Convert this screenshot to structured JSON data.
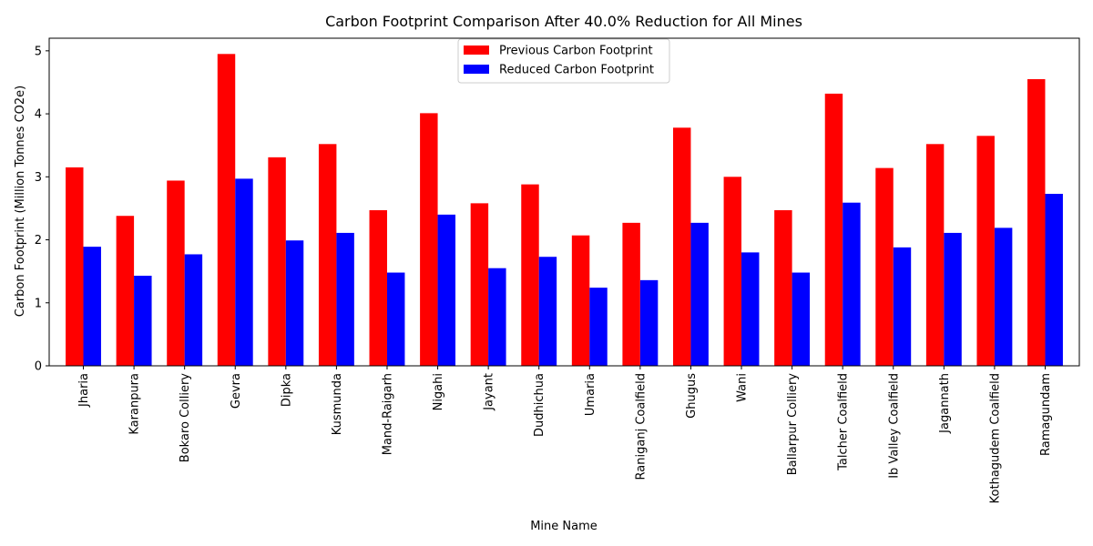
{
  "chart_data": {
    "type": "bar",
    "title": "Carbon Footprint Comparison After 40.0% Reduction for All Mines",
    "xlabel": "Mine Name",
    "ylabel": "Carbon Footprint (Million Tonnes CO2e)",
    "ylim": [
      0,
      5.2
    ],
    "yticks": [
      0,
      1,
      2,
      3,
      4,
      5
    ],
    "categories": [
      "Jharia",
      "Karanpura",
      "Bokaro Colliery",
      "Gevra",
      "Dipka",
      "Kusmunda",
      "Mand-Raigarh",
      "Nigahi",
      "Jayant",
      "Dudhichua",
      "Umaria",
      "Raniganj Coalfield",
      "Ghugus",
      "Wani",
      "Ballarpur Colliery",
      "Talcher Coalfield",
      "Ib Valley Coalfield",
      "Jagannath",
      "Kothagudem Coalfield",
      "Ramagundam"
    ],
    "series": [
      {
        "name": "Previous Carbon Footprint",
        "color": "#ff0000",
        "values": [
          3.15,
          2.38,
          2.94,
          4.95,
          3.31,
          3.52,
          2.47,
          4.01,
          2.58,
          2.88,
          2.07,
          2.27,
          3.78,
          3.0,
          2.47,
          4.32,
          3.14,
          3.52,
          3.65,
          4.55
        ]
      },
      {
        "name": "Reduced Carbon Footprint",
        "color": "#0000ff",
        "values": [
          1.89,
          1.43,
          1.77,
          2.97,
          1.99,
          2.11,
          1.48,
          2.4,
          1.55,
          1.73,
          1.24,
          1.36,
          2.27,
          1.8,
          1.48,
          2.59,
          1.88,
          2.11,
          2.19,
          2.73
        ]
      }
    ],
    "legend_position": "top-center",
    "grid": false
  }
}
